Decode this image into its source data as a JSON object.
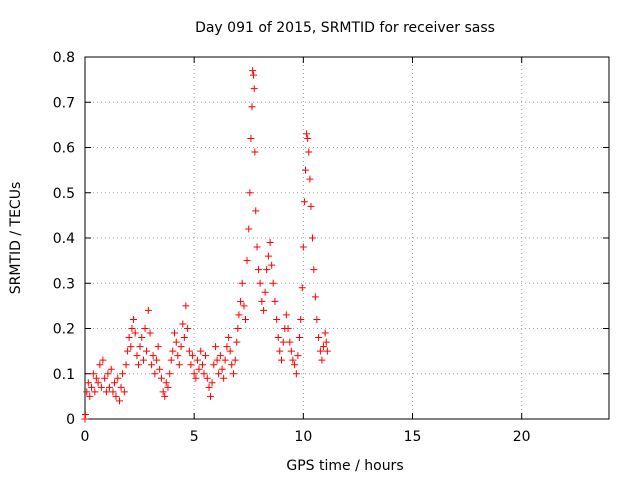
{
  "chart_data": {
    "type": "scatter",
    "title": "Day 091 of 2015, SRMTID for receiver sass",
    "xlabel": "GPS time / hours",
    "ylabel": "SRMTID / TECUs",
    "xlim": [
      0,
      24
    ],
    "ylim": [
      0,
      0.8
    ],
    "xticks": [
      0,
      5,
      10,
      15,
      20
    ],
    "yticks": [
      0,
      0.1,
      0.2,
      0.3,
      0.4,
      0.5,
      0.6,
      0.7,
      0.8
    ],
    "grid": true,
    "marker": "plus",
    "series": [
      {
        "name": "SRMTID",
        "color": "#ff0000",
        "points": [
          [
            0.0,
            0.0
          ],
          [
            0.02,
            0.01
          ],
          [
            0.08,
            0.06
          ],
          [
            0.15,
            0.08
          ],
          [
            0.22,
            0.05
          ],
          [
            0.3,
            0.07
          ],
          [
            0.38,
            0.1
          ],
          [
            0.45,
            0.06
          ],
          [
            0.52,
            0.09
          ],
          [
            0.6,
            0.08
          ],
          [
            0.68,
            0.12
          ],
          [
            0.75,
            0.07
          ],
          [
            0.82,
            0.13
          ],
          [
            0.9,
            0.09
          ],
          [
            0.98,
            0.06
          ],
          [
            1.05,
            0.1
          ],
          [
            1.12,
            0.07
          ],
          [
            1.2,
            0.11
          ],
          [
            1.28,
            0.06
          ],
          [
            1.35,
            0.08
          ],
          [
            1.42,
            0.05
          ],
          [
            1.5,
            0.09
          ],
          [
            1.58,
            0.04
          ],
          [
            1.65,
            0.07
          ],
          [
            1.72,
            0.1
          ],
          [
            1.8,
            0.06
          ],
          [
            1.88,
            0.12
          ],
          [
            1.95,
            0.15
          ],
          [
            2.02,
            0.18
          ],
          [
            2.1,
            0.16
          ],
          [
            2.15,
            0.2
          ],
          [
            2.22,
            0.22
          ],
          [
            2.3,
            0.19
          ],
          [
            2.38,
            0.14
          ],
          [
            2.45,
            0.12
          ],
          [
            2.52,
            0.16
          ],
          [
            2.6,
            0.18
          ],
          [
            2.68,
            0.13
          ],
          [
            2.75,
            0.2
          ],
          [
            2.82,
            0.15
          ],
          [
            2.9,
            0.24
          ],
          [
            2.98,
            0.19
          ],
          [
            3.05,
            0.12
          ],
          [
            3.12,
            0.14
          ],
          [
            3.2,
            0.1
          ],
          [
            3.28,
            0.13
          ],
          [
            3.35,
            0.16
          ],
          [
            3.42,
            0.11
          ],
          [
            3.5,
            0.09
          ],
          [
            3.58,
            0.06
          ],
          [
            3.65,
            0.05
          ],
          [
            3.72,
            0.08
          ],
          [
            3.8,
            0.07
          ],
          [
            3.88,
            0.1
          ],
          [
            3.95,
            0.13
          ],
          [
            4.02,
            0.15
          ],
          [
            4.1,
            0.19
          ],
          [
            4.18,
            0.17
          ],
          [
            4.25,
            0.14
          ],
          [
            4.32,
            0.12
          ],
          [
            4.4,
            0.16
          ],
          [
            4.48,
            0.21
          ],
          [
            4.55,
            0.18
          ],
          [
            4.62,
            0.25
          ],
          [
            4.7,
            0.2
          ],
          [
            4.78,
            0.15
          ],
          [
            4.85,
            0.12
          ],
          [
            4.92,
            0.14
          ],
          [
            5.0,
            0.1
          ],
          [
            5.08,
            0.09
          ],
          [
            5.15,
            0.13
          ],
          [
            5.22,
            0.11
          ],
          [
            5.3,
            0.15
          ],
          [
            5.38,
            0.12
          ],
          [
            5.45,
            0.1
          ],
          [
            5.52,
            0.14
          ],
          [
            5.6,
            0.09
          ],
          [
            5.68,
            0.07
          ],
          [
            5.75,
            0.05
          ],
          [
            5.82,
            0.08
          ],
          [
            5.9,
            0.12
          ],
          [
            5.98,
            0.16
          ],
          [
            6.05,
            0.13
          ],
          [
            6.12,
            0.1
          ],
          [
            6.2,
            0.14
          ],
          [
            6.28,
            0.11
          ],
          [
            6.35,
            0.09
          ],
          [
            6.42,
            0.13
          ],
          [
            6.5,
            0.16
          ],
          [
            6.58,
            0.18
          ],
          [
            6.65,
            0.15
          ],
          [
            6.72,
            0.12
          ],
          [
            6.8,
            0.1
          ],
          [
            6.88,
            0.13
          ],
          [
            6.95,
            0.17
          ],
          [
            7.0,
            0.2
          ],
          [
            7.05,
            0.23
          ],
          [
            7.12,
            0.26
          ],
          [
            7.2,
            0.3
          ],
          [
            7.28,
            0.25
          ],
          [
            7.35,
            0.22
          ],
          [
            7.42,
            0.35
          ],
          [
            7.5,
            0.42
          ],
          [
            7.55,
            0.5
          ],
          [
            7.6,
            0.62
          ],
          [
            7.65,
            0.69
          ],
          [
            7.68,
            0.77
          ],
          [
            7.72,
            0.76
          ],
          [
            7.75,
            0.73
          ],
          [
            7.78,
            0.59
          ],
          [
            7.82,
            0.46
          ],
          [
            7.88,
            0.38
          ],
          [
            7.95,
            0.33
          ],
          [
            8.02,
            0.3
          ],
          [
            8.1,
            0.26
          ],
          [
            8.18,
            0.24
          ],
          [
            8.25,
            0.28
          ],
          [
            8.32,
            0.33
          ],
          [
            8.4,
            0.36
          ],
          [
            8.48,
            0.39
          ],
          [
            8.55,
            0.34
          ],
          [
            8.62,
            0.3
          ],
          [
            8.7,
            0.26
          ],
          [
            8.78,
            0.22
          ],
          [
            8.85,
            0.18
          ],
          [
            8.92,
            0.15
          ],
          [
            9.0,
            0.13
          ],
          [
            9.08,
            0.17
          ],
          [
            9.15,
            0.2
          ],
          [
            9.22,
            0.23
          ],
          [
            9.3,
            0.2
          ],
          [
            9.38,
            0.17
          ],
          [
            9.45,
            0.15
          ],
          [
            9.52,
            0.13
          ],
          [
            9.6,
            0.12
          ],
          [
            9.68,
            0.1
          ],
          [
            9.75,
            0.14
          ],
          [
            9.82,
            0.18
          ],
          [
            9.88,
            0.22
          ],
          [
            9.95,
            0.29
          ],
          [
            10.0,
            0.38
          ],
          [
            10.05,
            0.48
          ],
          [
            10.1,
            0.55
          ],
          [
            10.15,
            0.63
          ],
          [
            10.2,
            0.62
          ],
          [
            10.25,
            0.59
          ],
          [
            10.3,
            0.53
          ],
          [
            10.35,
            0.47
          ],
          [
            10.42,
            0.4
          ],
          [
            10.48,
            0.33
          ],
          [
            10.55,
            0.27
          ],
          [
            10.62,
            0.22
          ],
          [
            10.7,
            0.18
          ],
          [
            10.78,
            0.15
          ],
          [
            10.85,
            0.13
          ],
          [
            10.92,
            0.16
          ],
          [
            11.0,
            0.19
          ],
          [
            11.05,
            0.17
          ],
          [
            11.1,
            0.15
          ]
        ]
      }
    ]
  }
}
